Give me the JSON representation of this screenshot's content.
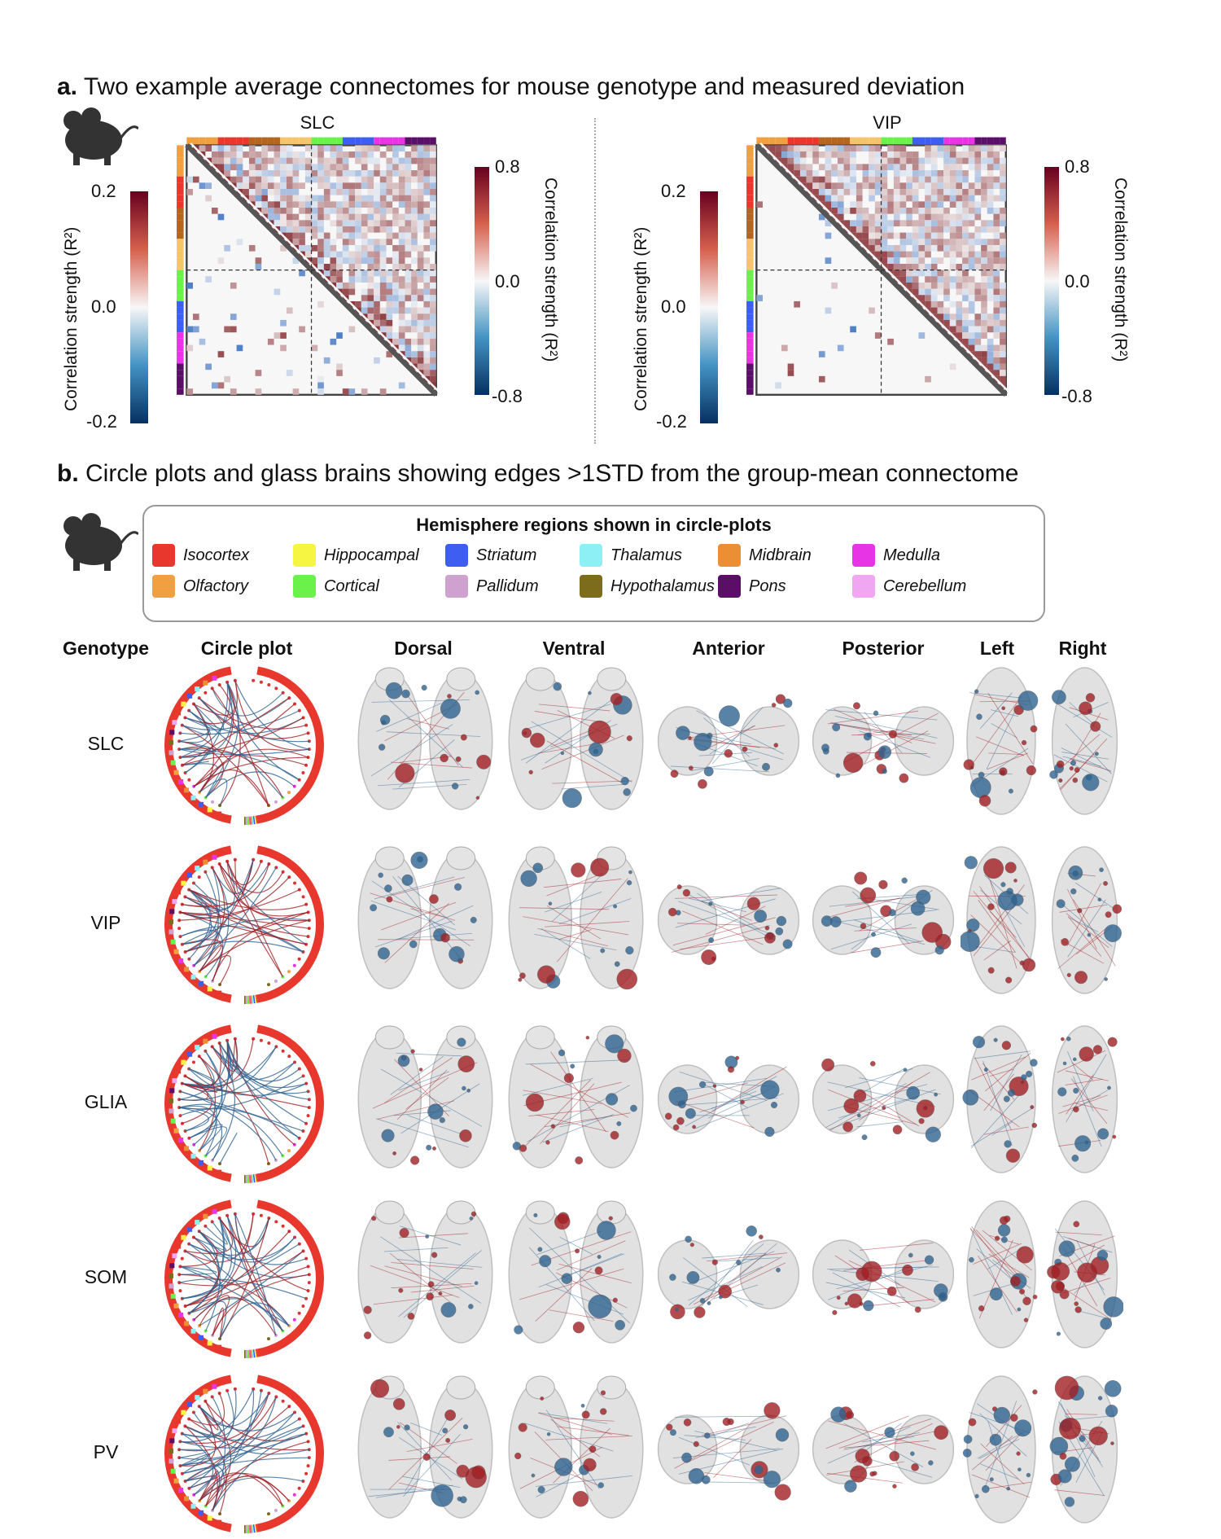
{
  "panel_a": {
    "letter": "a.",
    "title": "Two example average connectomes for mouse genotype and measured deviation",
    "matrices": [
      {
        "title": "SLC",
        "dev_ticks": [
          "0.2",
          "0.0",
          "-0.2"
        ],
        "corr_ticks": [
          "0.8",
          "0.0",
          "-0.8"
        ]
      },
      {
        "title": "VIP",
        "dev_ticks": [
          "0.2",
          "0.0",
          "-0.2"
        ],
        "corr_ticks": [
          "0.8",
          "0.0",
          "-0.8"
        ]
      }
    ],
    "left_axis_label": "Correlation strength (R²)",
    "right_axis_label": "Correlation strength (R²)"
  },
  "panel_b": {
    "letter": "b.",
    "title": "Circle plots and glass brains showing edges >1STD from the group-mean connectome",
    "legend_title": "Hemisphere regions shown in circle-plots",
    "regions": [
      {
        "name": "Isocortex",
        "color": "#e8372c"
      },
      {
        "name": "Hippocampal",
        "color": "#f5f542"
      },
      {
        "name": "Striatum",
        "color": "#3d5ef0"
      },
      {
        "name": "Thalamus",
        "color": "#8cf0f5"
      },
      {
        "name": "Midbrain",
        "color": "#ec8f34"
      },
      {
        "name": "Medulla",
        "color": "#e735e6"
      },
      {
        "name": "Olfactory",
        "color": "#f0a040"
      },
      {
        "name": "Cortical",
        "color": "#6af24a"
      },
      {
        "name": "Pallidum",
        "color": "#cfa1cf"
      },
      {
        "name": "Hypothalamus",
        "color": "#7d6c1c"
      },
      {
        "name": "Pons",
        "color": "#5a0e68"
      },
      {
        "name": "Cerebellum",
        "color": "#f0a6f0"
      }
    ],
    "columns": [
      "Genotype",
      "Circle plot",
      "Dorsal",
      "Ventral",
      "Anterior",
      "Posterior",
      "Left",
      "Right"
    ],
    "genotypes": [
      "SLC",
      "VIP",
      "GLIA",
      "SOM",
      "PV"
    ]
  },
  "colors": {
    "positive": "#a11f24",
    "negative": "#2f6391",
    "brain": "#d8d8d8"
  }
}
